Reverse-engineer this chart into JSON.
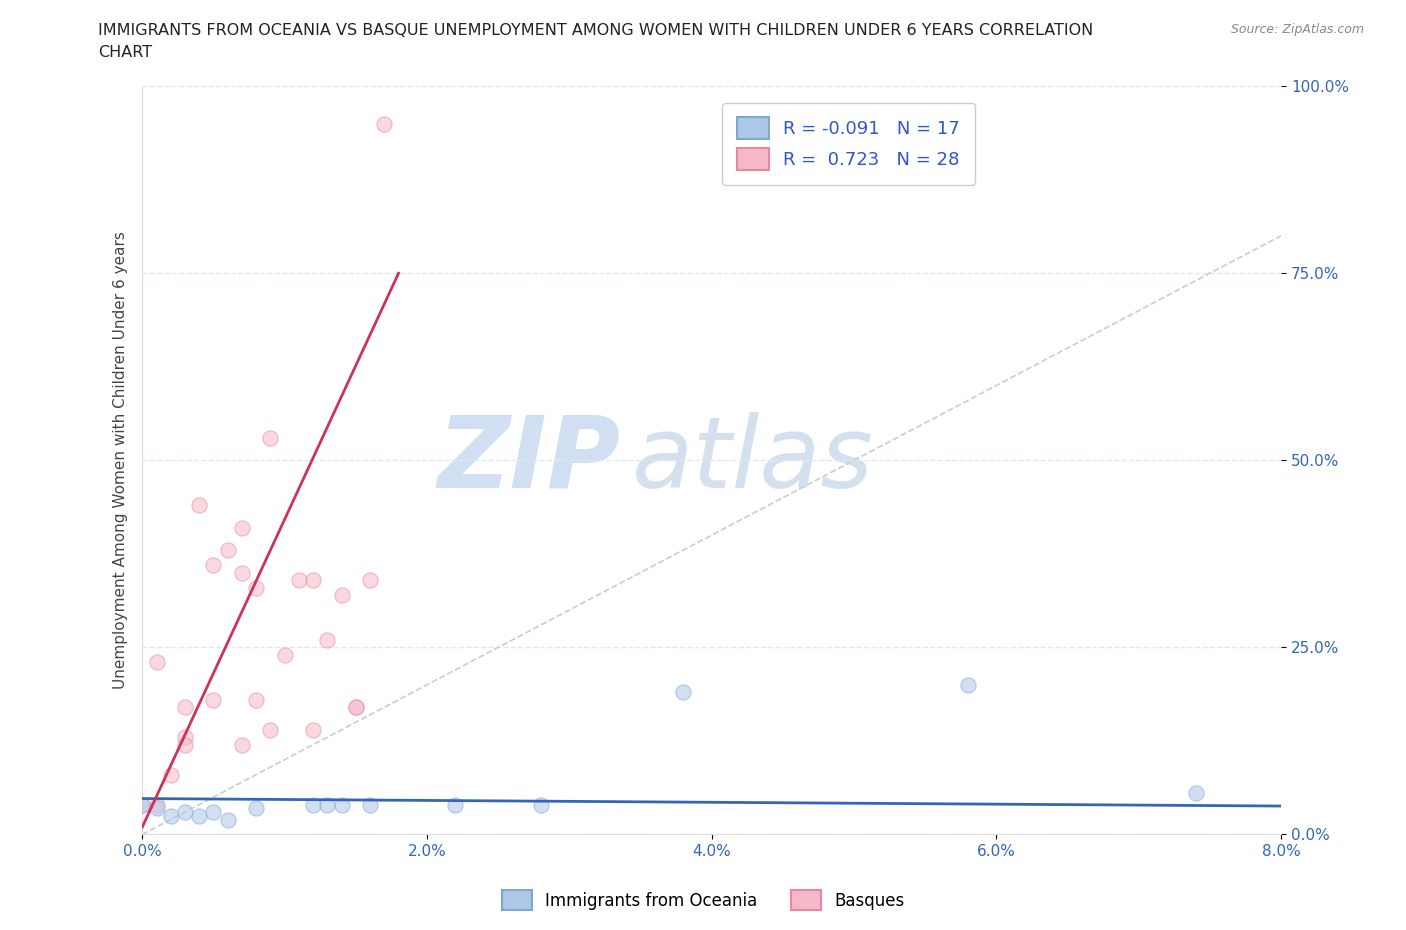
{
  "title_line1": "IMMIGRANTS FROM OCEANIA VS BASQUE UNEMPLOYMENT AMONG WOMEN WITH CHILDREN UNDER 6 YEARS CORRELATION",
  "title_line2": "CHART",
  "source": "Source: ZipAtlas.com",
  "ylabel": "Unemployment Among Women with Children Under 6 years",
  "xlim": [
    0.0,
    0.08
  ],
  "ylim": [
    0.0,
    1.0
  ],
  "xticks": [
    0.0,
    0.02,
    0.04,
    0.06,
    0.08
  ],
  "xtick_labels": [
    "0.0%",
    "2.0%",
    "4.0%",
    "6.0%",
    "8.0%"
  ],
  "yticks": [
    0.0,
    0.25,
    0.5,
    0.75,
    1.0
  ],
  "ytick_labels": [
    "0.0%",
    "25.0%",
    "50.0%",
    "75.0%",
    "100.0%"
  ],
  "blue_color": "#aec6e8",
  "pink_color": "#f5b8c8",
  "blue_edge": "#7aaad0",
  "pink_edge": "#e888a0",
  "trend_blue": "#3366bb",
  "trend_pink": "#cc3355",
  "ref_line_color": "#cccccc",
  "watermark_ZIP": "ZIP",
  "watermark_atlas": "atlas",
  "watermark_color": "#c5d8ee",
  "legend_label1": "Immigrants from Oceania",
  "legend_label2": "Basques",
  "r1": "-0.091",
  "n1": "17",
  "r2": "0.723",
  "n2": "28",
  "blue_points_x": [
    0.0,
    0.001,
    0.002,
    0.003,
    0.004,
    0.005,
    0.006,
    0.008,
    0.012,
    0.013,
    0.014,
    0.016,
    0.022,
    0.028,
    0.038,
    0.058,
    0.074
  ],
  "blue_points_y": [
    0.04,
    0.035,
    0.025,
    0.03,
    0.025,
    0.03,
    0.02,
    0.035,
    0.04,
    0.04,
    0.04,
    0.04,
    0.04,
    0.04,
    0.19,
    0.2,
    0.055
  ],
  "pink_points_x": [
    0.0,
    0.001,
    0.001,
    0.002,
    0.003,
    0.004,
    0.005,
    0.006,
    0.007,
    0.007,
    0.008,
    0.008,
    0.009,
    0.01,
    0.011,
    0.012,
    0.013,
    0.014,
    0.015,
    0.015,
    0.016,
    0.017,
    0.005,
    0.003,
    0.003,
    0.009,
    0.012,
    0.007
  ],
  "pink_points_y": [
    0.04,
    0.04,
    0.23,
    0.08,
    0.17,
    0.44,
    0.36,
    0.38,
    0.41,
    0.35,
    0.33,
    0.18,
    0.53,
    0.24,
    0.34,
    0.34,
    0.26,
    0.32,
    0.17,
    0.17,
    0.34,
    0.95,
    0.18,
    0.13,
    0.12,
    0.14,
    0.14,
    0.12
  ],
  "blue_trend_x": [
    0.0,
    0.08
  ],
  "blue_trend_y": [
    0.048,
    0.038
  ],
  "pink_trend_x": [
    0.0,
    0.018
  ],
  "pink_trend_y": [
    0.01,
    0.75
  ],
  "ref_line_x": [
    0.0,
    0.08
  ],
  "ref_line_y": [
    0.0,
    0.8
  ],
  "background_color": "#ffffff",
  "grid_color": "#ddeaf5",
  "title_color": "#222222",
  "axis_label_color": "#444444",
  "tick_color": "#3366bb",
  "point_size": 120,
  "point_alpha": 0.55
}
